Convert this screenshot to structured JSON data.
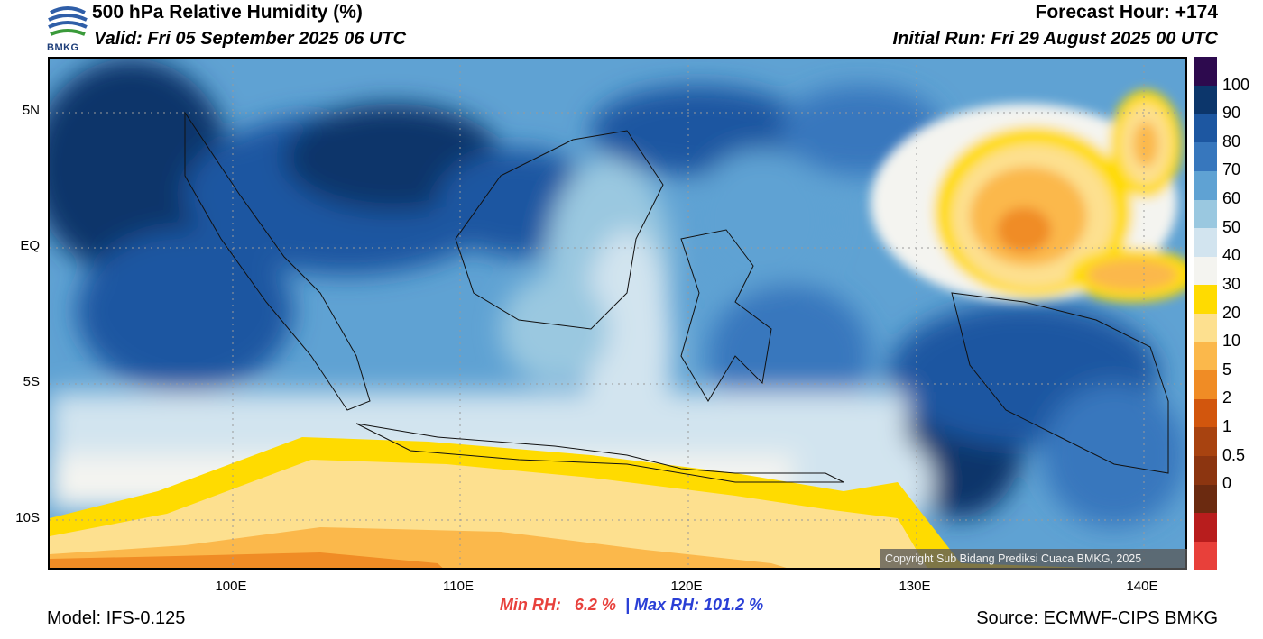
{
  "header": {
    "title": "500 hPa Relative Humidity (%)",
    "valid": "Valid: Fri 05 September 2025 06 UTC",
    "forecast_hour": "Forecast Hour: +174",
    "initial_run": "Initial Run: Fri 29 August 2025 00 UTC"
  },
  "logo": {
    "text": "BMKG"
  },
  "map": {
    "lat_labels": [
      "5N",
      "EQ",
      "5S",
      "10S"
    ],
    "lon_labels": [
      "100E",
      "110E",
      "120E",
      "130E",
      "140E"
    ],
    "copyright": "Copyright Sub Bidang Prediksi Cuaca BMKG, 2025"
  },
  "colorbar": {
    "labels": [
      "100",
      "90",
      "80",
      "70",
      "60",
      "50",
      "40",
      "30",
      "20",
      "10",
      "5",
      "2",
      "1",
      "0.5",
      "0"
    ],
    "colors": [
      "#e8403a",
      "#b81d1d",
      "#6b2a10",
      "#8c3510",
      "#a84310",
      "#d2560d",
      "#f08c25",
      "#fbb84b",
      "#fde08f",
      "#ffdb00",
      "#f4f4f0",
      "#d2e4ef",
      "#9ac8e0",
      "#5fa2d3",
      "#3777bd",
      "#1d57a1",
      "#0c366b",
      "#2d0a4e"
    ]
  },
  "stats": {
    "min_label": "Min RH:",
    "min_value": "6.2 %",
    "separator": "|",
    "max_label": "Max RH:",
    "max_value": "101.2 %"
  },
  "footer": {
    "model": "Model: IFS-0.125",
    "source": "Source: ECMWF-CIPS BMKG"
  }
}
